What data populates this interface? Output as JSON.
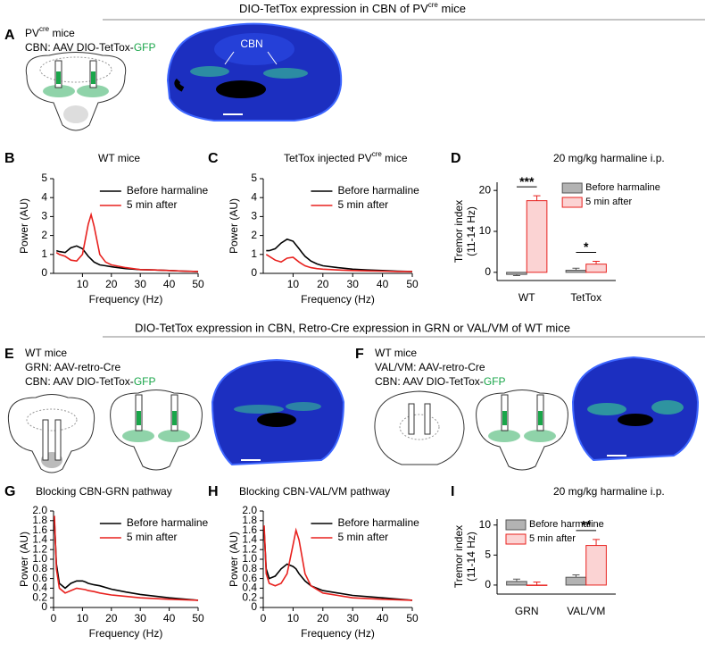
{
  "figure": {
    "header_1": {
      "text": "DIO-TetTox expression in CBN of PV",
      "sup": "cre",
      "after": " mice"
    },
    "header_2": "DIO-TetTox expression in CBN, Retro-Cre expression in GRN or VAL/VM of WT mice",
    "panel_labels": [
      "A",
      "B",
      "C",
      "D",
      "E",
      "F",
      "G",
      "H",
      "I"
    ],
    "panel_a": {
      "line_1": {
        "text": "PV",
        "sup": "cre",
        "after": " mice"
      },
      "line_2": {
        "text": "CBN: AAV DIO-TetTox-",
        "green": "GFP"
      },
      "image_label": "CBN"
    },
    "panel_e": {
      "line_1": "WT mice",
      "line_2": "GRN: AAV-retro-Cre",
      "line_3": {
        "text": "CBN: AAV DIO-TetTox-",
        "green": "GFP"
      }
    },
    "panel_f": {
      "line_1": "WT mice",
      "line_2": "VAL/VM: AAV-retro-Cre",
      "line_3": {
        "text": "CBN: AAV DIO-TetTox-",
        "green": "GFP"
      }
    }
  },
  "chart_data": [
    {
      "type": "line",
      "title": "WT mice",
      "xlabel": "Frequency (Hz)",
      "ylabel": "Power (AU)",
      "x": [
        1,
        2,
        4,
        6,
        8,
        10,
        12,
        13,
        14,
        16,
        18,
        20,
        25,
        30,
        35,
        40,
        45,
        50
      ],
      "xlim": [
        0,
        50
      ],
      "xticks": [
        10,
        20,
        30,
        40,
        50
      ],
      "ylim": [
        0,
        5
      ],
      "yticks": [
        0,
        1,
        2,
        3,
        4,
        5
      ],
      "legend": "upper right",
      "series": [
        {
          "name": "Before harmaline",
          "color": "#000000",
          "values": [
            1.2,
            1.15,
            1.1,
            1.35,
            1.45,
            1.3,
            0.9,
            0.75,
            0.6,
            0.45,
            0.4,
            0.35,
            0.25,
            0.2,
            0.18,
            0.15,
            0.12,
            0.1
          ]
        },
        {
          "name": "5 min after",
          "color": "#e8211e",
          "values": [
            1.1,
            1.0,
            0.9,
            0.7,
            0.65,
            1.0,
            2.6,
            3.1,
            2.5,
            1.0,
            0.6,
            0.45,
            0.3,
            0.2,
            0.18,
            0.15,
            0.12,
            0.1
          ]
        }
      ]
    },
    {
      "type": "line",
      "title": {
        "text": "TetTox injected PV",
        "sup": "cre",
        "after": " mice"
      },
      "xlabel": "Frequency (Hz)",
      "ylabel": "Power (AU)",
      "x": [
        1,
        2,
        4,
        6,
        8,
        10,
        12,
        13,
        14,
        16,
        18,
        20,
        25,
        30,
        35,
        40,
        45,
        50
      ],
      "xlim": [
        0,
        50
      ],
      "xticks": [
        10,
        20,
        30,
        40,
        50
      ],
      "ylim": [
        0,
        5
      ],
      "yticks": [
        0,
        1,
        2,
        3,
        4,
        5
      ],
      "legend": "upper right",
      "series": [
        {
          "name": "Before harmaline",
          "color": "#000000",
          "values": [
            1.2,
            1.2,
            1.3,
            1.6,
            1.8,
            1.7,
            1.3,
            1.1,
            0.9,
            0.65,
            0.5,
            0.4,
            0.3,
            0.22,
            0.18,
            0.15,
            0.12,
            0.1
          ]
        },
        {
          "name": "5 min after",
          "color": "#e8211e",
          "values": [
            1.0,
            0.9,
            0.7,
            0.6,
            0.8,
            0.85,
            0.6,
            0.5,
            0.4,
            0.3,
            0.25,
            0.22,
            0.18,
            0.15,
            0.13,
            0.12,
            0.1,
            0.1
          ]
        }
      ]
    },
    {
      "type": "bar",
      "title": "20 mg/kg harmaline i.p.",
      "ylabel": [
        "Tremor index",
        "(11-14 Hz)"
      ],
      "categories": [
        "WT",
        "TetTox"
      ],
      "ylim": [
        -2,
        22
      ],
      "yticks": [
        0,
        10,
        20
      ],
      "legend": "upper right",
      "significance": [
        "***",
        "*"
      ],
      "series": [
        {
          "name": "Before harmaline",
          "color": "#b3b3b3",
          "edgecolor": "#555555",
          "values": [
            -0.5,
            0.5
          ],
          "errors": [
            0.3,
            0.5
          ]
        },
        {
          "name": "5 min after",
          "color": "#fbd3d3",
          "edgecolor": "#e8211e",
          "values": [
            17.5,
            2.0
          ],
          "errors": [
            1.2,
            0.7
          ]
        }
      ]
    },
    {
      "type": "line",
      "title": "Blocking CBN-GRN pathway",
      "xlabel": "Frequency (Hz)",
      "ylabel": "Power (AU)",
      "x": [
        0.3,
        1,
        2,
        4,
        6,
        8,
        10,
        11,
        12,
        14,
        16,
        20,
        25,
        30,
        40,
        50
      ],
      "xlim": [
        0,
        50
      ],
      "xticks": [
        0,
        10,
        20,
        30,
        40,
        50
      ],
      "ylim": [
        0,
        2
      ],
      "yticks": [
        0,
        0.2,
        0.4,
        0.6,
        0.8,
        {
          "value": 1,
          "label": "1.0"
        },
        1.2,
        1.4,
        1.6,
        1.8,
        {
          "value": 2,
          "label": "2.0"
        }
      ],
      "legend": "upper right",
      "series": [
        {
          "name": "Before harmaline",
          "color": "#000000",
          "values": [
            1.8,
            0.9,
            0.5,
            0.4,
            0.5,
            0.55,
            0.55,
            0.53,
            0.5,
            0.47,
            0.45,
            0.38,
            0.32,
            0.27,
            0.2,
            0.15
          ]
        },
        {
          "name": "5 min after",
          "color": "#e8211e",
          "values": [
            1.9,
            0.8,
            0.4,
            0.3,
            0.35,
            0.4,
            0.38,
            0.37,
            0.35,
            0.33,
            0.3,
            0.26,
            0.23,
            0.2,
            0.17,
            0.15
          ]
        }
      ]
    },
    {
      "type": "line",
      "title": "Blocking CBN-VAL/VM pathway",
      "xlabel": "Frequency (Hz)",
      "ylabel": "Power (AU)",
      "x": [
        0.3,
        1,
        2,
        4,
        6,
        8,
        10,
        11,
        12,
        14,
        16,
        20,
        25,
        30,
        40,
        50
      ],
      "xlim": [
        0,
        50
      ],
      "xticks": [
        0,
        10,
        20,
        30,
        40,
        50
      ],
      "ylim": [
        0,
        2
      ],
      "yticks": [
        0,
        0.2,
        0.4,
        0.6,
        0.8,
        {
          "value": 1,
          "label": "1.0"
        },
        1.2,
        1.4,
        1.6,
        1.8,
        {
          "value": 2,
          "label": "2.0"
        }
      ],
      "legend": "upper right",
      "series": [
        {
          "name": "Before harmaline",
          "color": "#000000",
          "values": [
            1.6,
            0.8,
            0.6,
            0.65,
            0.8,
            0.9,
            0.85,
            0.8,
            0.7,
            0.55,
            0.45,
            0.35,
            0.3,
            0.25,
            0.2,
            0.15
          ]
        },
        {
          "name": "5 min after",
          "color": "#e8211e",
          "values": [
            1.7,
            0.7,
            0.5,
            0.45,
            0.5,
            0.7,
            1.3,
            1.6,
            1.4,
            0.7,
            0.45,
            0.3,
            0.25,
            0.2,
            0.17,
            0.15
          ]
        }
      ]
    },
    {
      "type": "bar",
      "title": "20 mg/kg harmaline i.p.",
      "ylabel": [
        "Tremor index",
        "(11-14 Hz)"
      ],
      "categories": [
        "GRN",
        "VAL/VM"
      ],
      "ylim": [
        -1.5,
        11
      ],
      "yticks": [
        0,
        5,
        10
      ],
      "legend": "upper left",
      "significance": [
        null,
        "**"
      ],
      "series": [
        {
          "name": "Before harmaline",
          "color": "#b3b3b3",
          "edgecolor": "#555555",
          "values": [
            0.6,
            1.3
          ],
          "errors": [
            0.4,
            0.4
          ]
        },
        {
          "name": "5 min after",
          "color": "#fbd3d3",
          "edgecolor": "#e8211e",
          "values": [
            0.0,
            6.6
          ],
          "errors": [
            0.5,
            1.0
          ]
        }
      ]
    }
  ]
}
